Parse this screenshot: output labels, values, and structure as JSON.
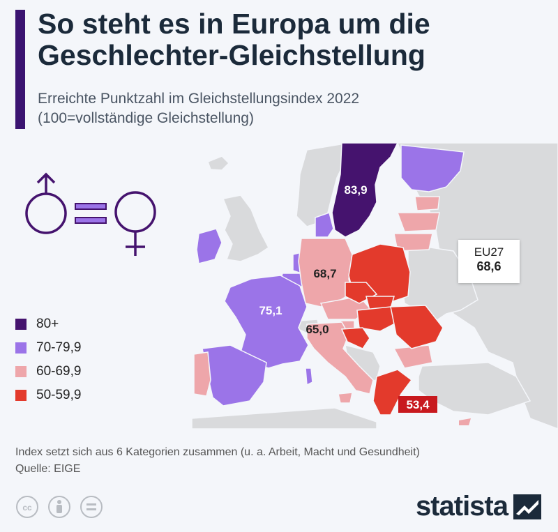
{
  "header": {
    "title_line1": "So steht es in Europa um die",
    "title_line2": "Geschlechter-Gleichstellung",
    "subtitle_line1": "Erreichte Punktzahl im Gleichstellungsindex 2022",
    "subtitle_line2": "(100=vollständige Gleichstellung)"
  },
  "map": {
    "labels": {
      "sweden": "83,9",
      "germany": "68,7",
      "france": "75,1",
      "italy": "65,0",
      "greece": "53,4"
    },
    "eu_box": {
      "name": "EU27",
      "value": "68,6"
    }
  },
  "legend": [
    {
      "label": "80+",
      "color": "#45136e"
    },
    {
      "label": "70-79,9",
      "color": "#9b74e8"
    },
    {
      "label": "60-69,9",
      "color": "#eea6aa"
    },
    {
      "label": "50-59,9",
      "color": "#e33a2c"
    }
  ],
  "colors": {
    "nonEU": "#d9dadc",
    "sea": "#f4f6fa",
    "accent": "#3b1471",
    "highlight_label": "#c8191e"
  },
  "footer": {
    "note": "Index setzt sich aus 6 Kategorien zusammen (u. a. Arbeit, Macht und Gesundheit)",
    "source": "Quelle: EIGE",
    "brand": "statista"
  }
}
